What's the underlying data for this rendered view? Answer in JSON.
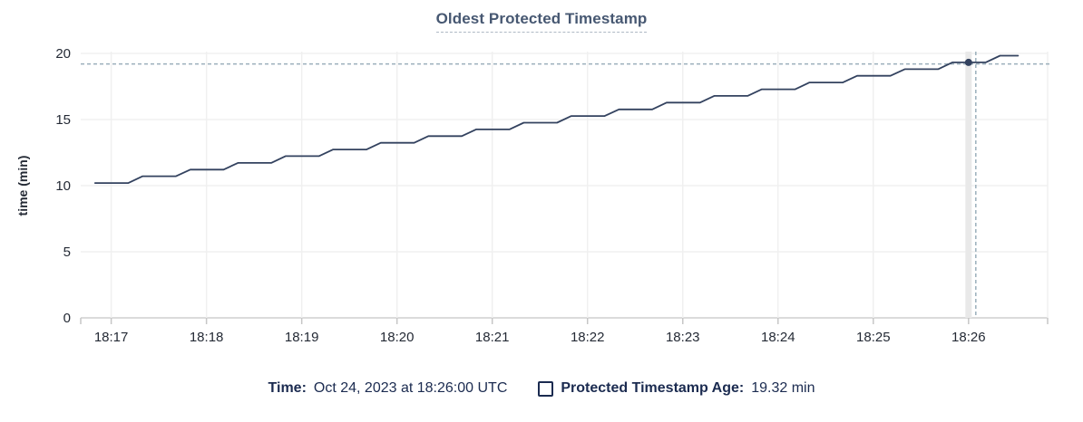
{
  "title": {
    "text": "Oldest Protected Timestamp"
  },
  "tooltip_legend": {
    "time_label": "Time:",
    "time_value": "Oct 24, 2023 at 18:26:00 UTC",
    "series_label": "Protected Timestamp Age:",
    "series_value": "19.32 min"
  },
  "chart_data": {
    "type": "line",
    "title": "Oldest Protected Timestamp",
    "xlabel": "",
    "ylabel": "time (min)",
    "x_tick_labels": [
      "18:17",
      "18:18",
      "18:19",
      "18:20",
      "18:21",
      "18:22",
      "18:23",
      "18:24",
      "18:25",
      "18:26"
    ],
    "x_tick_minutes": [
      0,
      1,
      2,
      3,
      4,
      5,
      6,
      7,
      8,
      9
    ],
    "x_domain_minutes": [
      -0.32,
      9.83
    ],
    "y_ticks": [
      0,
      5,
      10,
      15,
      20
    ],
    "ylim": [
      0,
      20
    ],
    "grid": true,
    "legend_position": "bottom",
    "series": [
      {
        "name": "Protected Timestamp Age",
        "unit": "min",
        "points": [
          [
            -0.17,
            10.2
          ],
          [
            0.18,
            10.2
          ],
          [
            0.33,
            10.71
          ],
          [
            0.68,
            10.71
          ],
          [
            0.83,
            11.21
          ],
          [
            1.18,
            11.21
          ],
          [
            1.33,
            11.72
          ],
          [
            1.68,
            11.72
          ],
          [
            1.83,
            12.23
          ],
          [
            2.18,
            12.23
          ],
          [
            2.33,
            12.73
          ],
          [
            2.68,
            12.73
          ],
          [
            2.83,
            13.24
          ],
          [
            3.18,
            13.24
          ],
          [
            3.33,
            13.75
          ],
          [
            3.68,
            13.75
          ],
          [
            3.83,
            14.25
          ],
          [
            4.18,
            14.25
          ],
          [
            4.33,
            14.76
          ],
          [
            4.68,
            14.76
          ],
          [
            4.83,
            15.27
          ],
          [
            5.18,
            15.27
          ],
          [
            5.33,
            15.77
          ],
          [
            5.68,
            15.77
          ],
          [
            5.83,
            16.28
          ],
          [
            6.18,
            16.28
          ],
          [
            6.33,
            16.79
          ],
          [
            6.68,
            16.79
          ],
          [
            6.83,
            17.29
          ],
          [
            7.18,
            17.29
          ],
          [
            7.33,
            17.8
          ],
          [
            7.68,
            17.8
          ],
          [
            7.83,
            18.31
          ],
          [
            8.18,
            18.31
          ],
          [
            8.33,
            18.81
          ],
          [
            8.68,
            18.81
          ],
          [
            8.83,
            19.32
          ],
          [
            9.18,
            19.32
          ],
          [
            9.33,
            19.83
          ],
          [
            9.52,
            19.83
          ]
        ]
      }
    ],
    "hover_point": {
      "t_minutes": 9.0,
      "value": 19.32,
      "time": "18:26:00"
    },
    "crosshair": {
      "x_t_minutes": 9.076,
      "y_value": 19.2,
      "hover_band_tick": 9
    }
  },
  "colors": {
    "title": "#475872",
    "axis_text": "#242a35",
    "legend_text": "#1b2b50",
    "line": "#33425f",
    "dot": "#33425f",
    "grid": "#f0f0f0",
    "grid_hover_band": "#e9e9e9",
    "axis_line": "#cfcfcf",
    "tick_mark": "#c6c6c6",
    "crosshair": "#9bafbb",
    "background": "#ffffff"
  }
}
